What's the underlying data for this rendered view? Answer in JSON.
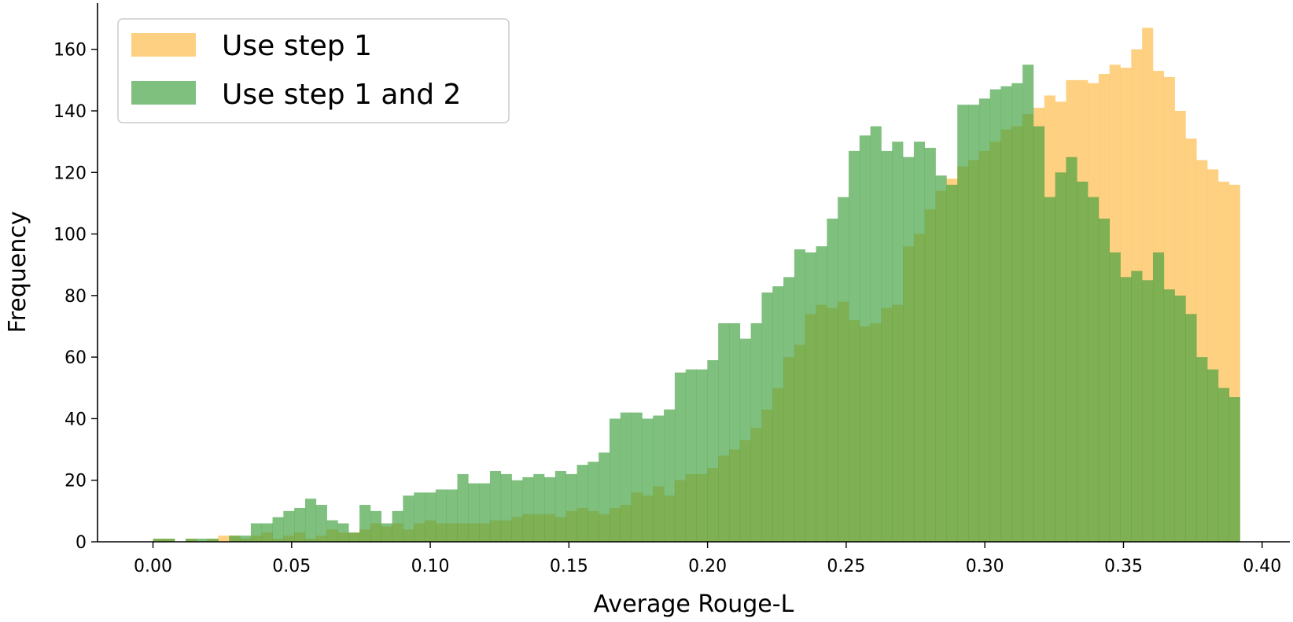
{
  "chart_data": {
    "type": "bar",
    "subtype": "histogram",
    "xlabel": "Average Rouge-L",
    "ylabel": "Frequency",
    "xlim": [
      -0.02,
      0.41
    ],
    "ylim": [
      0,
      175
    ],
    "x_ticks": [
      "0.00",
      "0.05",
      "0.10",
      "0.15",
      "0.20",
      "0.25",
      "0.30",
      "0.35",
      "0.40"
    ],
    "y_ticks": [
      "0",
      "20",
      "40",
      "60",
      "80",
      "100",
      "120",
      "140",
      "160"
    ],
    "bins": {
      "start": 0.0,
      "end": 0.392,
      "count": 100
    },
    "legend_position": "top-left",
    "grid": false,
    "series": [
      {
        "name": "Use step 1",
        "color": "#FDB93F",
        "opacity": 0.65,
        "values": [
          1,
          1,
          0,
          1,
          0,
          1,
          2,
          2,
          1,
          2,
          3,
          1,
          2,
          3,
          1,
          2,
          4,
          3,
          3,
          4,
          6,
          5,
          6,
          4,
          6,
          7,
          6,
          6,
          6,
          6,
          6,
          7,
          7,
          8,
          9,
          9,
          9,
          8,
          10,
          11,
          10,
          9,
          11,
          12,
          16,
          15,
          18,
          15,
          20,
          22,
          22,
          24,
          28,
          30,
          33,
          37,
          43,
          50,
          60,
          64,
          74,
          77,
          76,
          78,
          72,
          70,
          71,
          76,
          77,
          96,
          100,
          108,
          114,
          118,
          122,
          124,
          127,
          130,
          134,
          135,
          139,
          141,
          145,
          143,
          150,
          150,
          149,
          152,
          155,
          154,
          160,
          167,
          153,
          151,
          140,
          131,
          124,
          121,
          117,
          116
        ]
      },
      {
        "name": "Use step 1 and 2",
        "color": "#3A9E3A",
        "opacity": 0.65,
        "values": [
          1,
          1,
          0,
          1,
          1,
          1,
          0,
          2,
          2,
          6,
          6,
          8,
          10,
          11,
          14,
          12,
          7,
          6,
          3,
          12,
          10,
          6,
          10,
          15,
          16,
          16,
          17,
          17,
          22,
          19,
          19,
          23,
          22,
          20,
          21,
          22,
          21,
          23,
          22,
          25,
          26,
          29,
          40,
          42,
          42,
          40,
          41,
          43,
          55,
          56,
          56,
          59,
          71,
          71,
          66,
          71,
          81,
          83,
          86,
          95,
          94,
          96,
          105,
          112,
          127,
          132,
          135,
          127,
          130,
          125,
          130,
          128,
          119,
          116,
          142,
          142,
          144,
          147,
          148,
          149,
          155,
          135,
          112,
          120,
          125,
          117,
          112,
          105,
          94,
          86,
          88,
          85,
          94,
          82,
          80,
          74,
          60,
          56,
          50,
          47
        ]
      }
    ]
  }
}
